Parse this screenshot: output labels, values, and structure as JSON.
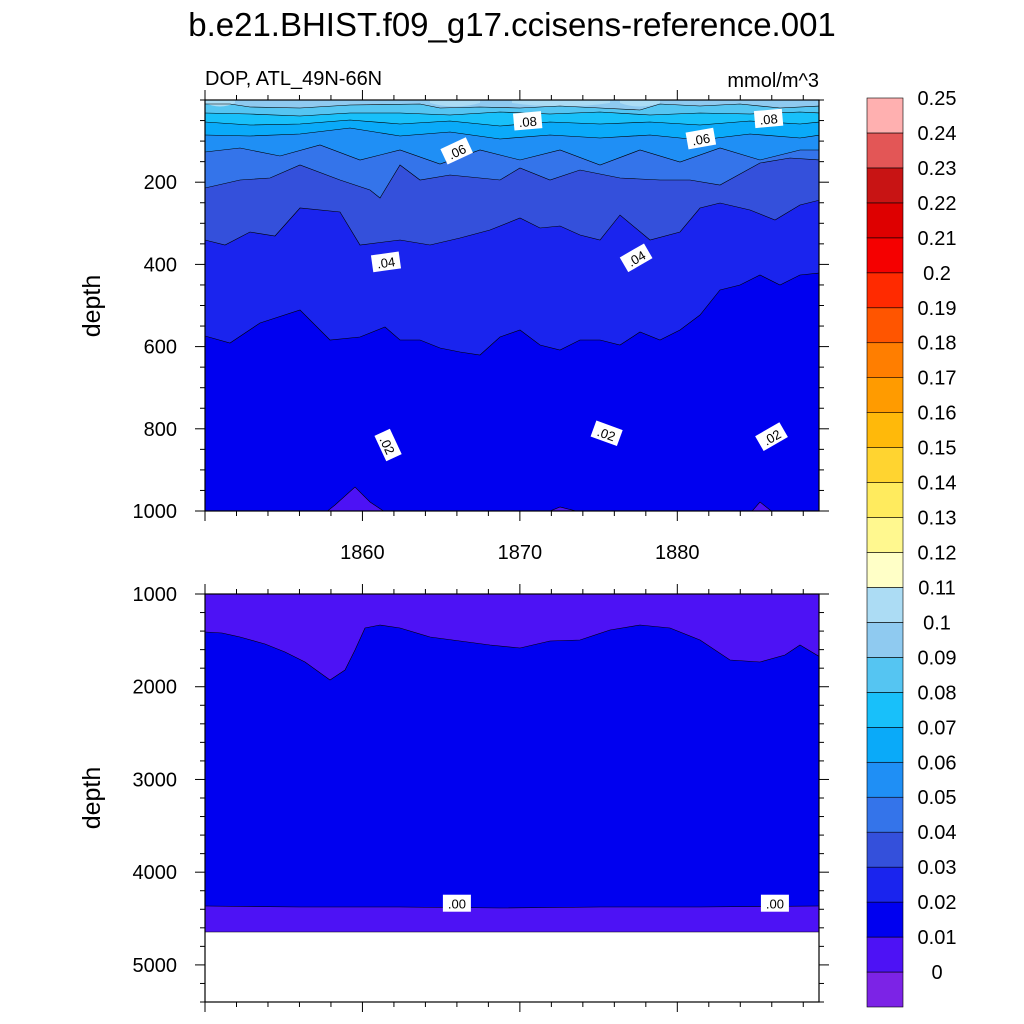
{
  "title": "b.e21.BHIST.f09_g17.ccisens-reference.001",
  "colors": {
    "levels": [
      "#7c23e6",
      "#4d12f5",
      "#0000f0",
      "#1a24ee",
      "#3450db",
      "#3474ea",
      "#1f8ff5",
      "#0aaaf9",
      "#18c0fa",
      "#55c5f2",
      "#8fcaf0",
      "#acdcf4",
      "#ffffc7",
      "#fff88f",
      "#ffeb5e",
      "#ffd430",
      "#ffb90a",
      "#ff9b00",
      "#ff7e00",
      "#ff5500",
      "#ff2a00",
      "#f50000",
      "#de0000",
      "#c81414",
      "#e35656",
      "#ffb0b0"
    ],
    "land": "#ffffff"
  },
  "chart_data": [
    {
      "type": "contour",
      "left_label": "DOP, ATL_49N-66N",
      "right_label": "mmol/m^3",
      "ylabel": "depth",
      "xlim": [
        1850,
        1889
      ],
      "ylim": [
        0,
        1000
      ],
      "y_inverted": true,
      "x_ticks": [
        1860,
        1870,
        1880
      ],
      "x_tick_labels": [
        "1860",
        "1870",
        "1880"
      ],
      "y_ticks": [
        200,
        400,
        600,
        800,
        1000
      ],
      "y_tick_labels": [
        "200",
        "400",
        "600",
        "800",
        "1000"
      ],
      "contour_labels": [
        {
          "text": ".08",
          "x": 1870.5,
          "y": 52,
          "angle": -5
        },
        {
          "text": ".08",
          "x": 1885.8,
          "y": 46,
          "angle": -5
        },
        {
          "text": ".06",
          "x": 1866.0,
          "y": 125,
          "angle": -25
        },
        {
          "text": ".06",
          "x": 1881.5,
          "y": 95,
          "angle": -10
        },
        {
          "text": ".04",
          "x": 1861.5,
          "y": 395,
          "angle": -8
        },
        {
          "text": ".04",
          "x": 1877.4,
          "y": 385,
          "angle": -30
        },
        {
          "text": ".02",
          "x": 1861.6,
          "y": 840,
          "angle": 65
        },
        {
          "text": ".02",
          "x": 1875.5,
          "y": 812,
          "angle": 20
        },
        {
          "text": ".02",
          "x": 1886.0,
          "y": 820,
          "angle": -30
        }
      ]
    },
    {
      "type": "contour",
      "ylabel": "depth",
      "xlim": [
        1850,
        1889
      ],
      "ylim": [
        1000,
        5400
      ],
      "y_inverted": true,
      "y_ticks": [
        1000,
        2000,
        3000,
        4000,
        5000
      ],
      "y_tick_labels": [
        "1000",
        "2000",
        "3000",
        "4000",
        "5000"
      ],
      "contour_labels": [
        {
          "text": ".00",
          "x": 1866.0,
          "y": 4340,
          "angle": 0
        },
        {
          "text": ".00",
          "x": 1886.2,
          "y": 4340,
          "angle": 0
        }
      ]
    },
    {
      "type": "colorbar",
      "levels": [
        "0",
        "0.01",
        "0.02",
        "0.03",
        "0.04",
        "0.05",
        "0.06",
        "0.07",
        "0.08",
        "0.09",
        "0.1",
        "0.11",
        "0.12",
        "0.13",
        "0.14",
        "0.15",
        "0.16",
        "0.17",
        "0.18",
        "0.19",
        "0.2",
        "0.21",
        "0.22",
        "0.23",
        "0.24",
        "0.25"
      ]
    }
  ]
}
